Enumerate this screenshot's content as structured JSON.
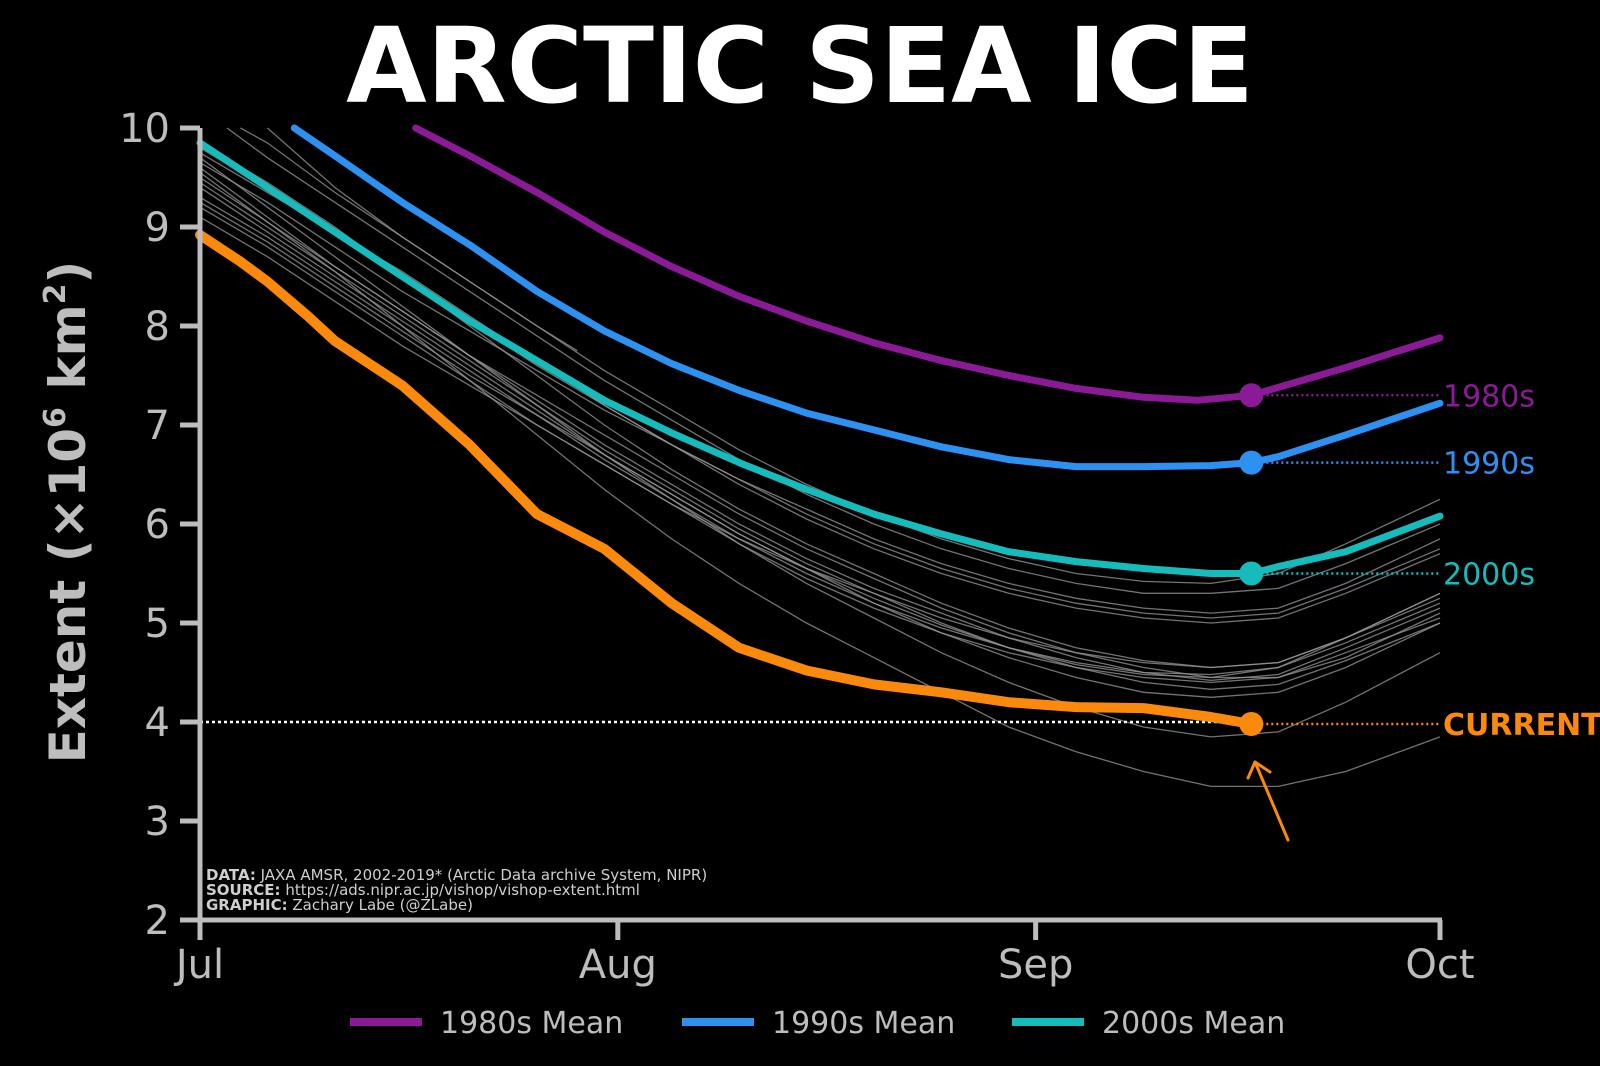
{
  "chart_data": {
    "type": "line",
    "title": "ARCTIC SEA ICE",
    "ylabel": "Extent (×10",
    "ylabel_sup": "6",
    "ylabel_unit": " km",
    "ylabel_sup2": "2",
    "ylabel_close": ")",
    "ylim": [
      2,
      10
    ],
    "yticks": [
      "2",
      "3",
      "4",
      "5",
      "6",
      "7",
      "8",
      "9",
      "10"
    ],
    "x_range_days": [
      0,
      92
    ],
    "xticks": [
      {
        "label": "Jul",
        "day": 0
      },
      {
        "label": "Aug",
        "day": 31
      },
      {
        "label": "Sep",
        "day": 62
      },
      {
        "label": "Oct",
        "day": 92
      }
    ],
    "reference_line": {
      "value": 4.0
    },
    "marker_day": 78,
    "series": [
      {
        "name": "1980s Mean",
        "end_label": "1980s",
        "color": "#8b1a96",
        "width": 7,
        "x": [
          16,
          20,
          25,
          30,
          35,
          40,
          45,
          50,
          55,
          60,
          65,
          70,
          74,
          78,
          80,
          85,
          92
        ],
        "y": [
          10.0,
          9.72,
          9.35,
          8.95,
          8.6,
          8.3,
          8.05,
          7.83,
          7.65,
          7.5,
          7.37,
          7.28,
          7.25,
          7.3,
          7.38,
          7.58,
          7.88
        ]
      },
      {
        "name": "1990s Mean",
        "end_label": "1990s",
        "color": "#2d91f2",
        "width": 7,
        "x": [
          7,
          10,
          15,
          20,
          25,
          30,
          35,
          40,
          45,
          50,
          55,
          60,
          65,
          70,
          75,
          78,
          80,
          85,
          92
        ],
        "y": [
          10.0,
          9.72,
          9.25,
          8.82,
          8.35,
          7.95,
          7.62,
          7.35,
          7.12,
          6.95,
          6.78,
          6.65,
          6.58,
          6.58,
          6.59,
          6.62,
          6.68,
          6.9,
          7.22
        ]
      },
      {
        "name": "2000s Mean",
        "end_label": "2000s",
        "color": "#16bcbc",
        "width": 7,
        "x": [
          0,
          5,
          10,
          15,
          20,
          25,
          30,
          35,
          40,
          45,
          50,
          55,
          60,
          65,
          70,
          75,
          78,
          80,
          85,
          92
        ],
        "y": [
          9.85,
          9.4,
          8.95,
          8.5,
          8.05,
          7.65,
          7.25,
          6.92,
          6.62,
          6.35,
          6.1,
          5.9,
          5.72,
          5.62,
          5.55,
          5.5,
          5.5,
          5.57,
          5.72,
          6.08
        ]
      },
      {
        "name": "",
        "end_label": "CURRENT",
        "color": "#fb8a0c",
        "width": 10,
        "x": [
          0,
          3,
          5,
          8,
          10,
          15,
          20,
          25,
          30,
          35,
          40,
          45,
          50,
          55,
          60,
          65,
          70,
          75,
          78
        ],
        "y": [
          8.92,
          8.65,
          8.45,
          8.1,
          7.85,
          7.4,
          6.8,
          6.1,
          5.75,
          5.2,
          4.75,
          4.52,
          4.38,
          4.3,
          4.2,
          4.15,
          4.14,
          4.05,
          3.98
        ]
      }
    ],
    "legend": {
      "placement": "bottom",
      "items": [
        "1980s Mean",
        "1990s Mean",
        "2000s Mean"
      ]
    },
    "background_years": [
      {
        "x": [
          0,
          5,
          10,
          15,
          20,
          25,
          30,
          35,
          40,
          45,
          50,
          55,
          60,
          65,
          70,
          75,
          80,
          85,
          92
        ],
        "y": [
          9.55,
          9.05,
          8.55,
          8.0,
          7.45,
          6.9,
          6.35,
          5.85,
          5.4,
          5.0,
          4.65,
          4.3,
          3.95,
          3.7,
          3.5,
          3.35,
          3.35,
          3.5,
          3.85
        ]
      },
      {
        "x": [
          0,
          5,
          10,
          15,
          20,
          25,
          30,
          35,
          40,
          45,
          50,
          55,
          60,
          65,
          70,
          75,
          80,
          85,
          92
        ],
        "y": [
          9.7,
          9.2,
          8.7,
          8.2,
          7.7,
          7.2,
          6.7,
          6.25,
          5.8,
          5.4,
          5.05,
          4.7,
          4.4,
          4.15,
          3.95,
          3.85,
          3.9,
          4.2,
          4.7
        ]
      },
      {
        "x": [
          0,
          5,
          10,
          15,
          20,
          25,
          30,
          35,
          40,
          45,
          50,
          55,
          60,
          65,
          70,
          75,
          80,
          85,
          92
        ],
        "y": [
          9.4,
          8.95,
          8.5,
          8.05,
          7.6,
          7.15,
          6.7,
          6.3,
          5.9,
          5.55,
          5.2,
          4.9,
          4.65,
          4.45,
          4.3,
          4.25,
          4.3,
          4.55,
          5.0
        ]
      },
      {
        "x": [
          0,
          5,
          10,
          15,
          20,
          25,
          30,
          35,
          40,
          45,
          50,
          55,
          60,
          65,
          70,
          75,
          80,
          85,
          92
        ],
        "y": [
          9.85,
          9.45,
          9.0,
          8.5,
          8.0,
          7.5,
          7.0,
          6.55,
          6.15,
          5.8,
          5.5,
          5.2,
          4.95,
          4.75,
          4.62,
          4.55,
          4.6,
          4.85,
          5.25
        ]
      },
      {
        "x": [
          0,
          5,
          10,
          15,
          20,
          25,
          30,
          35,
          40,
          45,
          50,
          55,
          60,
          65,
          70,
          75,
          80,
          85,
          92
        ],
        "y": [
          9.6,
          9.1,
          8.6,
          8.15,
          7.7,
          7.3,
          6.9,
          6.5,
          6.1,
          5.75,
          5.45,
          5.15,
          4.9,
          4.7,
          4.55,
          4.45,
          4.45,
          4.65,
          5.1
        ]
      },
      {
        "x": [
          0,
          5,
          10,
          15,
          20,
          25,
          30,
          35,
          40,
          45,
          50,
          55,
          60,
          65,
          70,
          75,
          80,
          85,
          92
        ],
        "y": [
          9.75,
          9.35,
          8.95,
          8.55,
          8.1,
          7.65,
          7.2,
          6.8,
          6.4,
          6.05,
          5.75,
          5.5,
          5.3,
          5.15,
          5.05,
          5.0,
          5.05,
          5.3,
          5.7
        ]
      },
      {
        "x": [
          0,
          5,
          10,
          15,
          20,
          25,
          30,
          35,
          40,
          45,
          50,
          55,
          60,
          65,
          70,
          75,
          80,
          85,
          92
        ],
        "y": [
          9.3,
          8.9,
          8.45,
          8.0,
          7.55,
          7.1,
          6.65,
          6.25,
          5.85,
          5.5,
          5.2,
          4.95,
          4.75,
          4.6,
          4.5,
          4.48,
          4.55,
          4.8,
          5.2
        ]
      },
      {
        "x": [
          2,
          5,
          10,
          15,
          20,
          25,
          30,
          35,
          40,
          45,
          50,
          55,
          60,
          65,
          70,
          75,
          80,
          85,
          92
        ],
        "y": [
          10.0,
          9.7,
          9.25,
          8.8,
          8.35,
          7.9,
          7.45,
          7.05,
          6.65,
          6.3,
          6.0,
          5.75,
          5.55,
          5.4,
          5.3,
          5.3,
          5.35,
          5.6,
          6.0
        ]
      },
      {
        "x": [
          0,
          5,
          10,
          15,
          20,
          25,
          30,
          35,
          40,
          45,
          50,
          55,
          60,
          65,
          70,
          75,
          80,
          85,
          92
        ],
        "y": [
          9.2,
          8.8,
          8.35,
          7.9,
          7.45,
          7.0,
          6.6,
          6.2,
          5.85,
          5.55,
          5.3,
          5.05,
          4.85,
          4.7,
          4.6,
          4.55,
          4.6,
          4.85,
          5.3
        ]
      },
      {
        "x": [
          3,
          5,
          10,
          15,
          20,
          25,
          30,
          35,
          40,
          45,
          50,
          55,
          60,
          65,
          70,
          75,
          80,
          85,
          92
        ],
        "y": [
          10.0,
          9.85,
          9.35,
          8.9,
          8.45,
          8.0,
          7.55,
          7.15,
          6.75,
          6.4,
          6.1,
          5.85,
          5.65,
          5.5,
          5.42,
          5.4,
          5.5,
          5.8,
          6.25
        ]
      },
      {
        "x": [
          0,
          5,
          10,
          15,
          20,
          25,
          30,
          35,
          40,
          45,
          50,
          55,
          60,
          65,
          70,
          75,
          80,
          85,
          92
        ],
        "y": [
          9.5,
          9.05,
          8.6,
          8.15,
          7.7,
          7.25,
          6.8,
          6.4,
          6.0,
          5.65,
          5.35,
          5.1,
          4.85,
          4.65,
          4.5,
          4.42,
          4.48,
          4.75,
          5.15
        ]
      },
      {
        "x": [
          0,
          5,
          10,
          15,
          20,
          25,
          30,
          35,
          40,
          45,
          50,
          55,
          60,
          65,
          70,
          75,
          80,
          85,
          92
        ],
        "y": [
          9.65,
          9.25,
          8.8,
          8.35,
          7.95,
          7.55,
          7.15,
          6.8,
          6.45,
          6.15,
          5.85,
          5.6,
          5.4,
          5.25,
          5.15,
          5.1,
          5.15,
          5.4,
          5.85
        ]
      },
      {
        "x": [
          0,
          5,
          10,
          15,
          20,
          25,
          30,
          35,
          40,
          45,
          50,
          55,
          60,
          65,
          70,
          75,
          80,
          85,
          92
        ],
        "y": [
          9.1,
          8.7,
          8.25,
          7.8,
          7.4,
          7.0,
          6.6,
          6.2,
          5.8,
          5.45,
          5.15,
          4.9,
          4.7,
          4.55,
          4.45,
          4.4,
          4.45,
          4.7,
          5.05
        ]
      },
      {
        "x": [
          0,
          5,
          10,
          15,
          20,
          25,
          30,
          35,
          40,
          45,
          50,
          55,
          60,
          65,
          70,
          75,
          80,
          85,
          92
        ],
        "y": [
          9.8,
          9.4,
          8.95,
          8.5,
          8.05,
          7.6,
          7.2,
          6.8,
          6.45,
          6.1,
          5.8,
          5.55,
          5.35,
          5.2,
          5.1,
          5.05,
          5.1,
          5.35,
          5.75
        ]
      },
      {
        "x": [
          0,
          5,
          10,
          15,
          20,
          25,
          30,
          35,
          40,
          45,
          50,
          55,
          60,
          65,
          70,
          75,
          80,
          85,
          92
        ],
        "y": [
          9.45,
          9.0,
          8.55,
          8.1,
          7.65,
          7.2,
          6.75,
          6.35,
          5.95,
          5.6,
          5.3,
          5.0,
          4.75,
          4.55,
          4.4,
          4.33,
          4.38,
          4.62,
          5.0
        ]
      },
      {
        "x": [
          0,
          5,
          10,
          15,
          20,
          25,
          30,
          35,
          40,
          45,
          50,
          55,
          60,
          65,
          70,
          75,
          80,
          85,
          92
        ],
        "y": [
          9.25,
          8.85,
          8.4,
          7.95,
          7.5,
          7.1,
          6.7,
          6.3,
          5.9,
          5.55,
          5.25,
          4.98,
          4.75,
          4.58,
          4.48,
          4.45,
          4.55,
          4.85,
          5.3
        ]
      },
      {
        "x": [
          5,
          10,
          15,
          20,
          25,
          28
        ],
        "y": [
          10.0,
          9.4,
          8.9,
          8.45,
          8.0,
          7.75
        ]
      }
    ],
    "credits": [
      {
        "label": "DATA:",
        "text": " JAXA AMSR, 2002-2019* (Arctic Data archive System, NIPR)"
      },
      {
        "label": "SOURCE:",
        "text": " https://ads.nipr.ac.jp/vishop/vishop-extent.html"
      },
      {
        "label": "GRAPHIC:",
        "text": " Zachary Labe (@ZLabe)"
      }
    ],
    "colors": {
      "background": "#000000",
      "axis": "#bdbdbd",
      "background_years": "#9a9a9a",
      "reference": "#ffffff"
    }
  }
}
